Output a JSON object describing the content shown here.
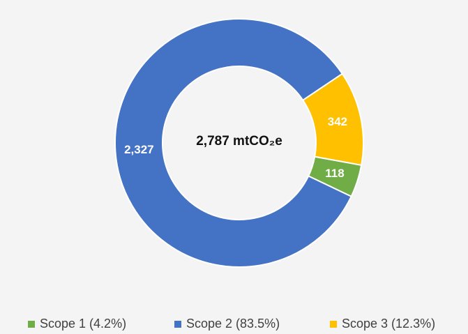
{
  "chart_data": {
    "type": "donut",
    "center_label": "2,787 mtCO₂e",
    "categories": [
      "Scope 1 (4.2%)",
      "Scope 2 (83.5%)",
      "Scope 3 (12.3%)"
    ],
    "values": [
      118,
      2327,
      342
    ],
    "value_labels": [
      "118",
      "2,327",
      "342"
    ],
    "colors": [
      "#70ad47",
      "#4472c4",
      "#ffc000"
    ],
    "legend": "bottom"
  }
}
